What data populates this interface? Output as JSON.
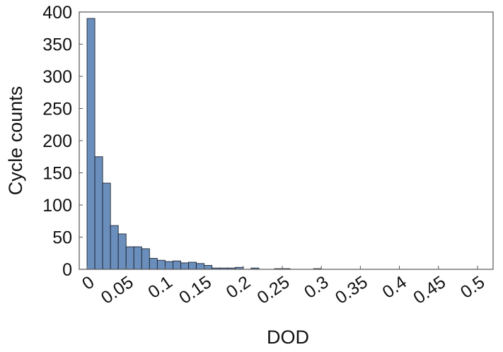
{
  "chart_data": {
    "type": "bar",
    "title": "",
    "xlabel": "DOD",
    "ylabel": "Cycle counts",
    "xlim": [
      -0.01,
      0.52
    ],
    "ylim": [
      0,
      400
    ],
    "x_ticks": [
      0,
      0.05,
      0.1,
      0.15,
      0.2,
      0.25,
      0.3,
      0.35,
      0.4,
      0.45,
      0.5
    ],
    "x_tick_labels": [
      "0",
      "0.05",
      "0.1",
      "0.15",
      "0.2",
      "0.25",
      "0.3",
      "0.35",
      "0.4",
      "0.45",
      "0.5"
    ],
    "y_ticks": [
      0,
      50,
      100,
      150,
      200,
      250,
      300,
      350,
      400
    ],
    "y_tick_labels": [
      "0",
      "50",
      "100",
      "150",
      "200",
      "250",
      "300",
      "350",
      "400"
    ],
    "bin_width": 0.01,
    "bin_starts": [
      0,
      0.01,
      0.02,
      0.03,
      0.04,
      0.05,
      0.06,
      0.07,
      0.08,
      0.09,
      0.1,
      0.11,
      0.12,
      0.13,
      0.14,
      0.15,
      0.16,
      0.17,
      0.18,
      0.19,
      0.2,
      0.21,
      0.22,
      0.23,
      0.24,
      0.25,
      0.26,
      0.27,
      0.28,
      0.29
    ],
    "values": [
      390,
      175,
      134,
      68,
      55,
      35,
      35,
      32,
      17,
      14,
      12,
      13,
      10,
      11,
      9,
      6,
      2,
      2,
      2,
      3,
      0,
      2,
      0,
      0,
      1,
      1,
      0,
      0,
      0,
      1
    ],
    "grid": false,
    "legend": "none",
    "bar_color": "#6a8fbd",
    "bar_edge_color": "#1e2430"
  }
}
